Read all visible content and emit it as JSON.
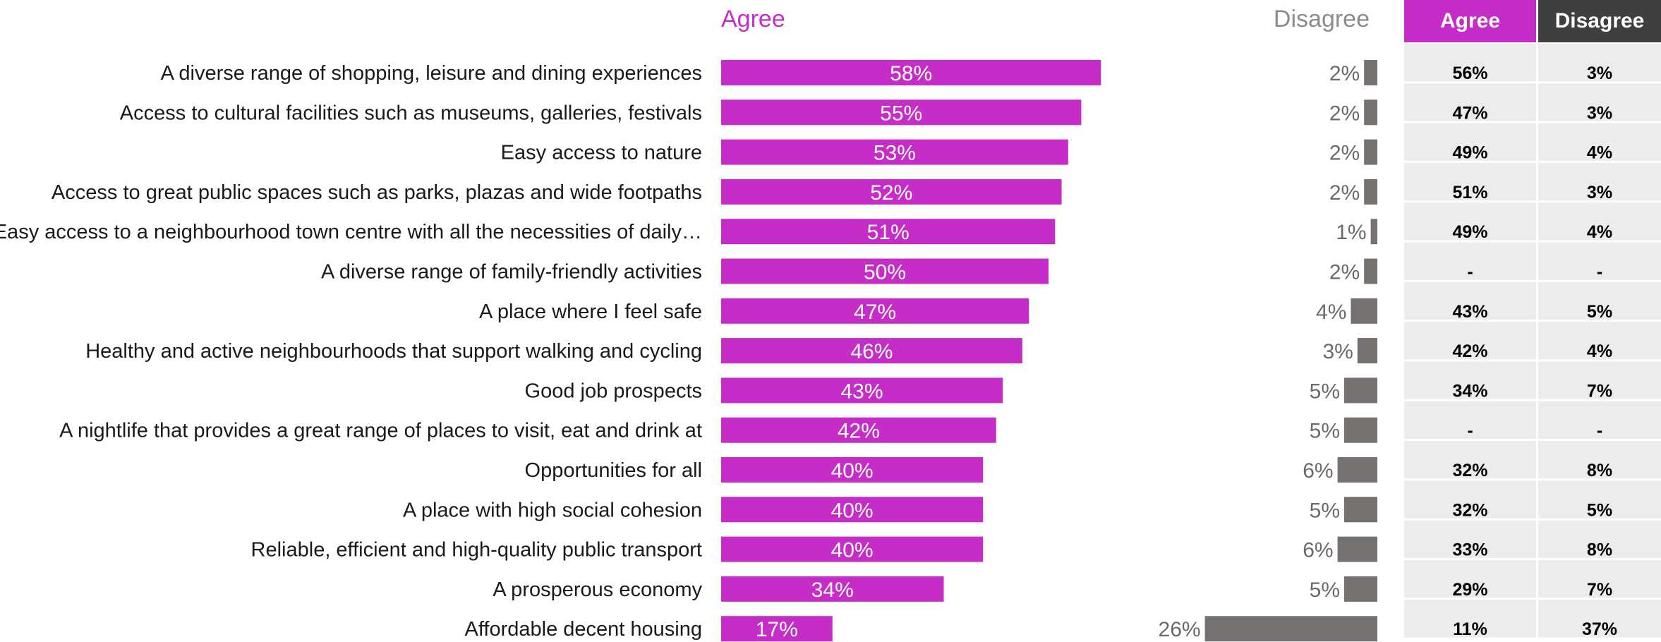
{
  "headers": {
    "agree": "Agree",
    "disagree": "Disagree",
    "table_agree": "Agree",
    "table_disagree": "Disagree"
  },
  "colors": {
    "agree_bar": "#c62dc8",
    "disagree_bar": "#767171",
    "agree_text": "#c62dc8",
    "disagree_text": "#8c8c8c",
    "table_agree_header": "#c62dc8",
    "table_disagree_header": "#3f3f3f",
    "table_cell": "#ececec",
    "label_text": "#1a1a1a",
    "bar_label_text": "#ffffff"
  },
  "chart_data": {
    "type": "bar",
    "orientation": "horizontal",
    "categories": [
      "A diverse range of shopping, leisure and dining experiences",
      "Access to cultural facilities such as museums, galleries, festivals",
      "Easy access to nature",
      "Access to great public spaces such as parks, plazas and wide footpaths",
      "Easy access to a neighbourhood town centre with all the necessities of daily…",
      "A diverse range of family-friendly activities",
      "A place where I feel safe",
      "Healthy and active neighbourhoods that support walking and cycling",
      "Good job prospects",
      "A nightlife that provides a great range of places to visit, eat and drink at",
      "Opportunities for all",
      "A place with high social cohesion",
      "Reliable, efficient and high-quality public transport",
      "A prosperous economy",
      "Affordable decent housing"
    ],
    "series": [
      {
        "name": "Agree",
        "values": [
          58,
          55,
          53,
          52,
          51,
          50,
          47,
          46,
          43,
          42,
          40,
          40,
          40,
          34,
          17
        ],
        "labels": [
          "58%",
          "55%",
          "53%",
          "52%",
          "51%",
          "50%",
          "47%",
          "46%",
          "43%",
          "42%",
          "40%",
          "40%",
          "40%",
          "34%",
          "17%"
        ]
      },
      {
        "name": "Disagree",
        "values": [
          2,
          2,
          2,
          2,
          1,
          2,
          4,
          3,
          5,
          5,
          6,
          5,
          6,
          5,
          26
        ],
        "labels": [
          "2%",
          "2%",
          "2%",
          "2%",
          "1%",
          "2%",
          "4%",
          "3%",
          "5%",
          "5%",
          "6%",
          "5%",
          "6%",
          "5%",
          "26%"
        ]
      }
    ],
    "table": {
      "columns": [
        "Agree",
        "Disagree"
      ],
      "agree": [
        "56%",
        "47%",
        "49%",
        "51%",
        "49%",
        "-",
        "43%",
        "42%",
        "34%",
        "-",
        "32%",
        "32%",
        "33%",
        "29%",
        "11%"
      ],
      "disagree": [
        "3%",
        "3%",
        "4%",
        "3%",
        "4%",
        "-",
        "5%",
        "4%",
        "7%",
        "-",
        "8%",
        "5%",
        "8%",
        "7%",
        "37%"
      ]
    }
  }
}
